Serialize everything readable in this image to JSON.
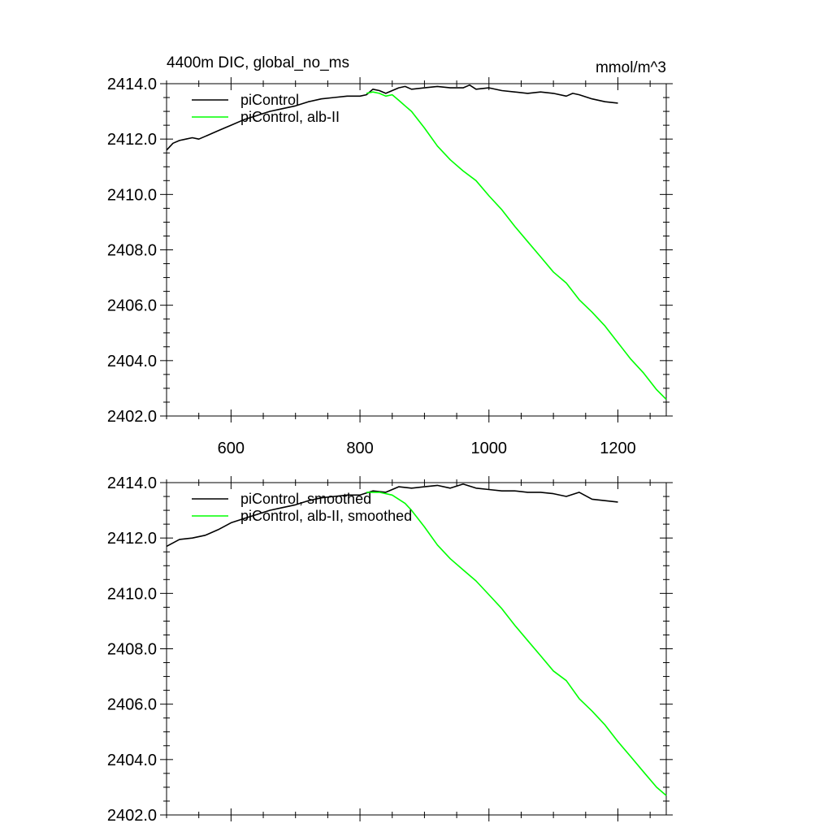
{
  "chart_data": [
    {
      "type": "line",
      "title": "4400m DIC, global_no_ms",
      "units": "mmol/m^3",
      "xlim": [
        500,
        1275
      ],
      "ylim": [
        2402.0,
        2414.0
      ],
      "x_ticks": [
        600,
        800,
        1000,
        1200
      ],
      "x_tick_labels": [
        "600",
        "800",
        "1000",
        "1200"
      ],
      "y_ticks": [
        2402.0,
        2404.0,
        2406.0,
        2408.0,
        2410.0,
        2412.0,
        2414.0
      ],
      "y_tick_labels": [
        "2402.0",
        "2404.0",
        "2406.0",
        "2408.0",
        "2410.0",
        "2412.0",
        "2414.0"
      ],
      "legend_position": "top-left",
      "series": [
        {
          "name": "piControl",
          "color": "#000000",
          "x": [
            500,
            510,
            520,
            530,
            540,
            550,
            560,
            570,
            580,
            590,
            600,
            620,
            640,
            660,
            680,
            700,
            720,
            740,
            760,
            780,
            800,
            810,
            820,
            830,
            840,
            850,
            860,
            870,
            880,
            900,
            920,
            940,
            960,
            970,
            980,
            1000,
            1020,
            1040,
            1060,
            1080,
            1100,
            1120,
            1130,
            1140,
            1160,
            1180,
            1200
          ],
          "y": [
            2411.6,
            2411.85,
            2411.95,
            2412.0,
            2412.05,
            2412.0,
            2412.1,
            2412.2,
            2412.3,
            2412.4,
            2412.5,
            2412.7,
            2412.85,
            2413.0,
            2413.1,
            2413.2,
            2413.35,
            2413.45,
            2413.5,
            2413.55,
            2413.55,
            2413.6,
            2413.8,
            2413.75,
            2413.65,
            2413.75,
            2413.85,
            2413.9,
            2413.8,
            2413.85,
            2413.9,
            2413.85,
            2413.85,
            2413.95,
            2413.8,
            2413.85,
            2413.75,
            2413.7,
            2413.65,
            2413.7,
            2413.65,
            2413.55,
            2413.65,
            2413.6,
            2413.45,
            2413.35,
            2413.3
          ]
        },
        {
          "name": "piControl, alb-II",
          "color": "#00ff00",
          "x": [
            810,
            820,
            830,
            840,
            850,
            860,
            870,
            880,
            900,
            920,
            940,
            960,
            980,
            1000,
            1020,
            1040,
            1060,
            1080,
            1100,
            1120,
            1140,
            1160,
            1180,
            1200,
            1220,
            1240,
            1260,
            1275
          ],
          "y": [
            2413.65,
            2413.7,
            2413.65,
            2413.55,
            2413.6,
            2413.4,
            2413.2,
            2413.0,
            2412.4,
            2411.75,
            2411.25,
            2410.85,
            2410.5,
            2409.95,
            2409.45,
            2408.85,
            2408.3,
            2407.75,
            2407.2,
            2406.8,
            2406.2,
            2405.75,
            2405.25,
            2404.65,
            2404.05,
            2403.55,
            2402.95,
            2402.6
          ]
        }
      ]
    },
    {
      "type": "line",
      "title": "",
      "units": "",
      "xlim": [
        500,
        1275
      ],
      "ylim": [
        2402.0,
        2414.0
      ],
      "x_ticks": [
        600,
        800,
        1000,
        1200
      ],
      "y_ticks": [
        2402.0,
        2404.0,
        2406.0,
        2408.0,
        2410.0,
        2412.0,
        2414.0
      ],
      "y_tick_labels": [
        "2402.0",
        "2404.0",
        "2406.0",
        "2408.0",
        "2410.0",
        "2412.0",
        "2414.0"
      ],
      "legend_position": "top-left",
      "series": [
        {
          "name": "piControl, smoothed",
          "color": "#000000",
          "x": [
            500,
            520,
            540,
            560,
            580,
            600,
            620,
            640,
            660,
            680,
            700,
            720,
            740,
            760,
            780,
            800,
            820,
            840,
            860,
            880,
            900,
            920,
            940,
            960,
            980,
            1000,
            1020,
            1040,
            1060,
            1080,
            1100,
            1120,
            1140,
            1160,
            1180,
            1200
          ],
          "y": [
            2411.7,
            2411.95,
            2412.0,
            2412.1,
            2412.3,
            2412.55,
            2412.7,
            2412.85,
            2413.0,
            2413.1,
            2413.2,
            2413.35,
            2413.45,
            2413.5,
            2413.55,
            2413.55,
            2413.7,
            2413.65,
            2413.85,
            2413.8,
            2413.85,
            2413.9,
            2413.8,
            2413.95,
            2413.8,
            2413.75,
            2413.7,
            2413.7,
            2413.65,
            2413.65,
            2413.6,
            2413.5,
            2413.65,
            2413.4,
            2413.35,
            2413.3
          ]
        },
        {
          "name": "piControl, alb-II, smoothed",
          "color": "#00ff00",
          "x": [
            810,
            830,
            850,
            870,
            880,
            900,
            920,
            940,
            960,
            980,
            1000,
            1020,
            1040,
            1060,
            1080,
            1100,
            1120,
            1140,
            1160,
            1180,
            1200,
            1220,
            1240,
            1260,
            1275
          ],
          "y": [
            2413.65,
            2413.65,
            2413.55,
            2413.25,
            2413.0,
            2412.4,
            2411.75,
            2411.25,
            2410.85,
            2410.45,
            2409.95,
            2409.45,
            2408.85,
            2408.3,
            2407.75,
            2407.2,
            2406.85,
            2406.2,
            2405.75,
            2405.25,
            2404.65,
            2404.1,
            2403.55,
            2403.0,
            2402.7
          ]
        }
      ]
    }
  ]
}
